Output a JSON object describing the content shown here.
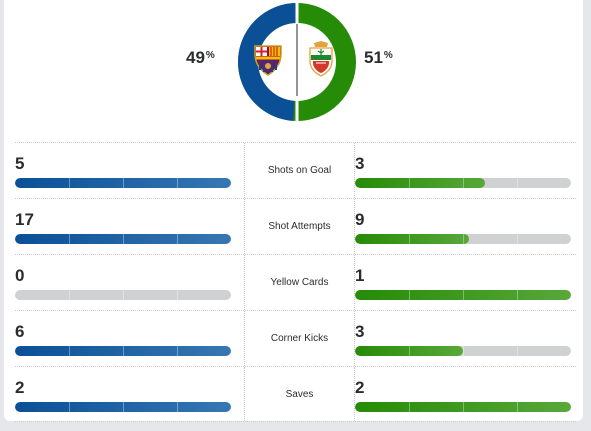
{
  "possession": {
    "home": {
      "value": "49",
      "unit": "%",
      "fraction": 0.49,
      "color": "#0b4f96",
      "crest": "fc-barcelona-crest-icon"
    },
    "away": {
      "value": "51",
      "unit": "%",
      "fraction": 0.51,
      "color": "#268b06",
      "crest": "elche-cf-crest-icon"
    }
  },
  "colors": {
    "home_bar": "#0b4f96",
    "away_bar": "#268b06",
    "empty_bar": "#d0d1d3"
  },
  "stats": [
    {
      "label": "Shots on Goal",
      "home": "5",
      "away": "3",
      "home_fraction": 1.0,
      "away_fraction": 0.6
    },
    {
      "label": "Shot Attempts",
      "home": "17",
      "away": "9",
      "home_fraction": 1.0,
      "away_fraction": 0.53
    },
    {
      "label": "Yellow Cards",
      "home": "0",
      "away": "1",
      "home_fraction": 0.0,
      "away_fraction": 1.0
    },
    {
      "label": "Corner Kicks",
      "home": "6",
      "away": "3",
      "home_fraction": 1.0,
      "away_fraction": 0.5
    },
    {
      "label": "Saves",
      "home": "2",
      "away": "2",
      "home_fraction": 1.0,
      "away_fraction": 1.0
    }
  ]
}
